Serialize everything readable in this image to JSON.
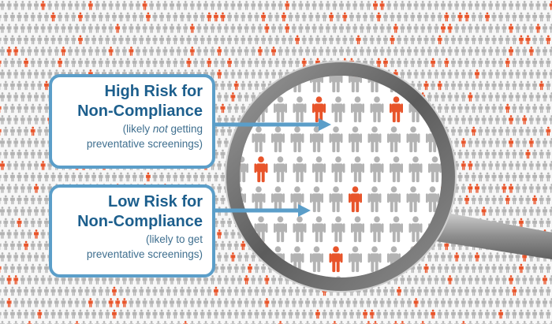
{
  "callouts": {
    "high_risk": {
      "title_line1": "High Risk for",
      "title_line2": "Non-Compliance",
      "note_prefix": "(likely ",
      "note_emphasis": "not",
      "note_suffix": " getting",
      "note_line2": "preventative screenings)"
    },
    "low_risk": {
      "title_line1": "Low Risk for",
      "title_line2": "Non-Compliance",
      "note_line1": "(likely to get",
      "note_line2": "preventative screenings)"
    }
  },
  "colors": {
    "person_gray": "#b3b3b3",
    "person_orange": "#e8542a",
    "callout_border": "#5b9ec9",
    "callout_title": "#1d5f8d",
    "arrow": "#5b9ec9",
    "lens_rim": "#6e6e6e",
    "handle": "#8a8a8a"
  },
  "icons": {
    "person": "person-icon",
    "magnifier": "magnifying-glass-icon",
    "arrow": "arrow-right-icon"
  }
}
